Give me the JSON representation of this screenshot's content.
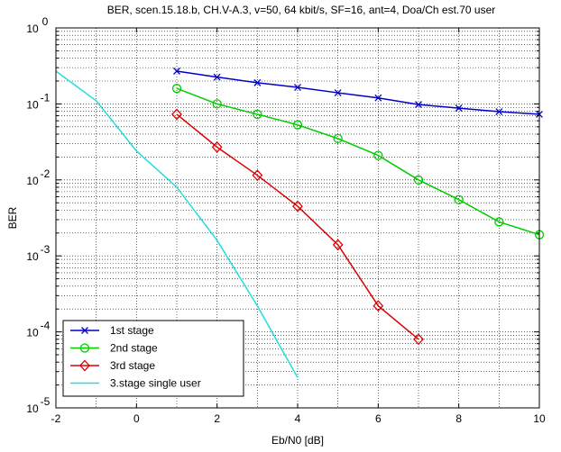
{
  "chart_data": {
    "type": "line",
    "title": "BER, scen.15.18.b, CH.V-A.3, v=50, 64 kbit/s, SF=16, ant=4, Doa/Ch est.70 user",
    "xlabel": "Eb/N0 [dB]",
    "ylabel": "BER",
    "xlim": [
      -2,
      10
    ],
    "ylim": [
      1e-05,
      1
    ],
    "yscale": "log",
    "grid": true,
    "legend_position": "bottom-left",
    "x_ticks": [
      "-2",
      "0",
      "2",
      "4",
      "6",
      "8",
      "10"
    ],
    "y_ticks": [
      {
        "base": "10",
        "exp": "0"
      },
      {
        "base": "10",
        "exp": "-1"
      },
      {
        "base": "10",
        "exp": "-2"
      },
      {
        "base": "10",
        "exp": "-3"
      },
      {
        "base": "10",
        "exp": "-4"
      },
      {
        "base": "10",
        "exp": "-5"
      }
    ],
    "series": [
      {
        "name": "1st stage",
        "color": "#0000cc",
        "marker": "x",
        "x": [
          1,
          2,
          3,
          4,
          5,
          6,
          7,
          8,
          9,
          10
        ],
        "y": [
          0.27,
          0.225,
          0.19,
          0.165,
          0.14,
          0.12,
          0.098,
          0.088,
          0.079,
          0.073
        ]
      },
      {
        "name": "2nd stage",
        "color": "#00cc00",
        "marker": "o",
        "x": [
          1,
          2,
          3,
          4,
          5,
          6,
          7,
          8,
          9,
          10
        ],
        "y": [
          0.16,
          0.1,
          0.073,
          0.053,
          0.035,
          0.021,
          0.01,
          0.0055,
          0.0028,
          0.0019
        ]
      },
      {
        "name": "3rd stage",
        "color": "#dd0000",
        "marker": "diamond",
        "x": [
          1,
          2,
          3,
          4,
          5,
          6,
          7
        ],
        "y": [
          0.073,
          0.027,
          0.0115,
          0.0045,
          0.0014,
          0.00022,
          8e-05
        ]
      },
      {
        "name": "3.stage single user",
        "color": "#22dddd",
        "marker": "none",
        "x": [
          -2,
          -1,
          0,
          1,
          2,
          3,
          4
        ],
        "y": [
          0.27,
          0.11,
          0.024,
          0.008,
          0.0016,
          0.00022,
          2.5e-05
        ]
      }
    ]
  }
}
